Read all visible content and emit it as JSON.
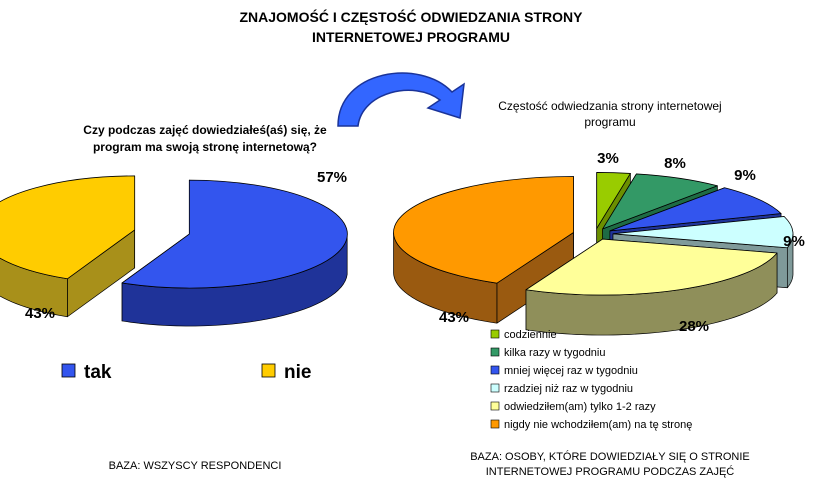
{
  "header": {
    "title_line1": "ZNAJOMOŚĆ I CZĘSTOŚĆ ODWIEDZANIA STRONY",
    "title_line2": "INTERNETOWEJ PROGRAMU"
  },
  "left_chart": {
    "question_line1": "Czy podczas zajęć dowiedziałeś(aś) się, że",
    "question_line2": "program ma swoją stronę internetową?",
    "base": "BAZA: WSZYSCY RESPONDENCI"
  },
  "right_chart": {
    "title_line1": "Częstość odwiedzania strony internetowej",
    "title_line2": "programu",
    "base_line1": "BAZA: OSOBY, KTÓRE DOWIEDZIAŁY SIĘ O STRONIE",
    "base_line2": "INTERNETOWEJ PROGRAMU PODCZAS ZAJĘĆ"
  },
  "chart_data": [
    {
      "type": "pie",
      "variant": "3d-exploded",
      "title": "Czy podczas zajęć dowiedziałeś(aś) się, że program ma swoją stronę internetową?",
      "legend_position": "bottom",
      "slices": [
        {
          "label": "tak",
          "value": 57,
          "display": "57%",
          "color": "#3355ee",
          "side": "#1f3399"
        },
        {
          "label": "nie",
          "value": 43,
          "display": "43%",
          "color": "#ffcc00",
          "side": "#a8901a"
        }
      ]
    },
    {
      "type": "pie",
      "variant": "3d-exploded",
      "title": "Częstość odwiedzania strony internetowej programu",
      "legend_position": "bottom-right",
      "slices": [
        {
          "label": "codziennie",
          "value": 3,
          "display": "3%",
          "color": "#99cc00",
          "side": "#6b8f00"
        },
        {
          "label": "kilka razy w tygodniu",
          "value": 8,
          "display": "8%",
          "color": "#339966",
          "side": "#1e6b44"
        },
        {
          "label": "mniej więcej raz w tygodniu",
          "value": 9,
          "display": "9%",
          "color": "#3355ee",
          "side": "#1f3399"
        },
        {
          "label": "rzadziej niż raz w tygodniu",
          "value": 9,
          "display": "9%",
          "color": "#ccffff",
          "side": "#7f9a9a"
        },
        {
          "label": "odwiedziłem(am) tylko 1-2 razy",
          "value": 28,
          "display": "28%",
          "color": "#ffff99",
          "side": "#8f8f5a"
        },
        {
          "label": "nigdy nie wchodziłem(am) na tę stronę",
          "value": 43,
          "display": "43%",
          "color": "#ff9900",
          "side": "#9a5a10"
        }
      ]
    }
  ]
}
